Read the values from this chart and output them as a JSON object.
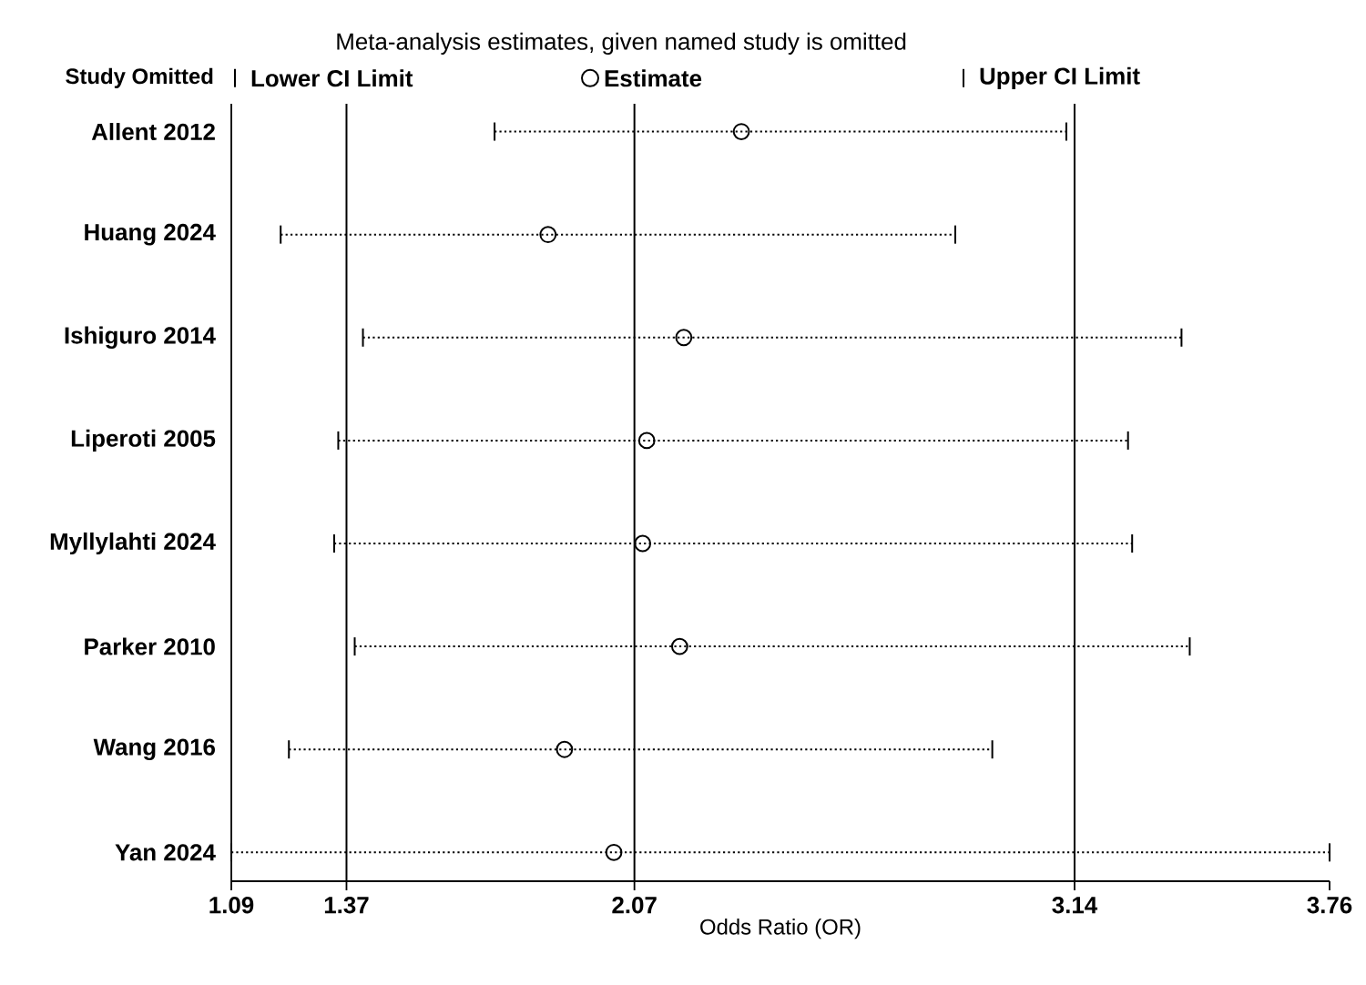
{
  "chart_data": {
    "type": "scatter",
    "orientation": "horizontal",
    "title": "Meta-analysis estimates, given named study is omitted",
    "ylabel": "Study Omitted",
    "xlabel": "Odds Ratio (OR)",
    "categories": [
      "Allent 2012",
      "Huang 2024",
      "Ishiguro 2014",
      "Liperoti 2005",
      "Myllylahti 2024",
      "Parker 2010",
      "Wang 2016",
      "Yan 2024"
    ],
    "series": [
      {
        "name": "Estimate",
        "color": "#000000",
        "marker": "circle",
        "values": [
          2.33,
          1.86,
          2.19,
          2.1,
          2.09,
          2.18,
          1.9,
          2.02
        ],
        "errors": [
          [
            1.73,
            3.12
          ],
          [
            1.21,
            2.85
          ],
          [
            1.41,
            3.4
          ],
          [
            1.35,
            3.27
          ],
          [
            1.34,
            3.28
          ],
          [
            1.39,
            3.42
          ],
          [
            1.23,
            2.94
          ],
          [
            1.09,
            3.76
          ]
        ]
      }
    ],
    "annotations": [
      "Lower CI Limit",
      "Upper CI Limit"
    ],
    "line_style": "dotted",
    "xlim": [
      1.09,
      3.76
    ],
    "xticks": [
      1.09,
      1.37,
      2.07,
      3.14,
      3.76
    ],
    "ref_lines": [
      {
        "axis": "x",
        "value": 1.37
      },
      {
        "axis": "x",
        "value": 2.07
      },
      {
        "axis": "x",
        "value": 3.14
      }
    ],
    "legend": "top"
  }
}
